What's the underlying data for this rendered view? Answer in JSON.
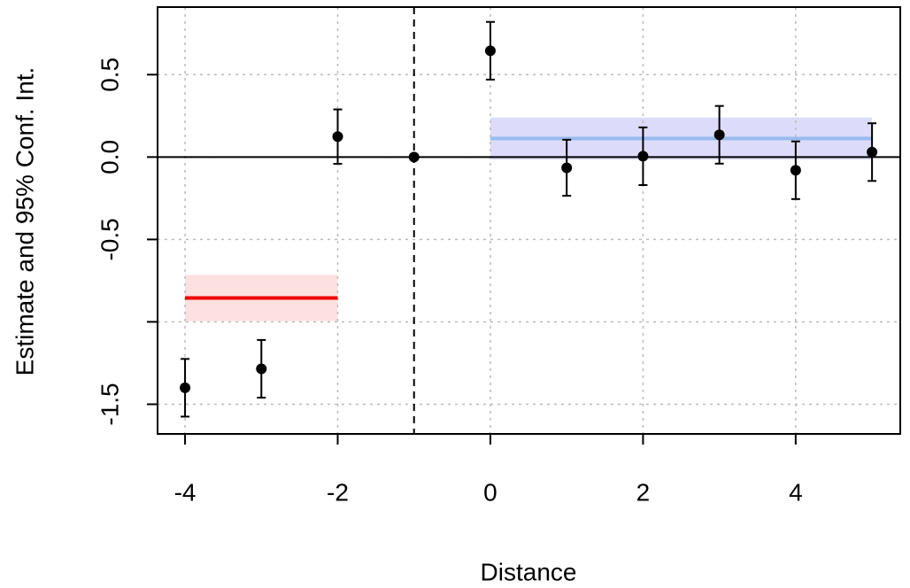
{
  "chart_data": {
    "type": "errorbar",
    "xlabel": "Distance",
    "ylabel": "Estimate and 95% Conf. Int.",
    "x": [
      -4,
      -3,
      -2,
      -1,
      0,
      1,
      2,
      3,
      4,
      5
    ],
    "values": [
      -1.4,
      -1.285,
      0.124,
      0,
      0.645,
      -0.065,
      0.005,
      0.135,
      -0.08,
      0.03
    ],
    "errors": [
      0.175,
      0.175,
      0.165,
      null,
      0.175,
      0.17,
      0.175,
      0.175,
      0.175,
      0.175
    ],
    "color": "#000000",
    "averages": [
      {
        "x": [
          -4,
          -2
        ],
        "value": -0.855,
        "lower": -0.995,
        "upper": -0.715,
        "color": "#ee0000",
        "fill": "#fde0e0"
      },
      {
        "x": [
          0,
          5
        ],
        "value": 0.113,
        "lower": -0.016,
        "upper": 0.24,
        "color": "#99bbee",
        "fill": "#dcdcfa"
      }
    ],
    "vline": -1,
    "hline": 0,
    "xlim": [
      -4.36,
      5.37
    ],
    "ylim": [
      -1.68,
      0.91
    ],
    "xticks": [
      -4,
      -2,
      0,
      2,
      4
    ],
    "yticks": [
      0.5,
      {
        "value": 0,
        "label": "0.0"
      },
      -0.5,
      {
        "value": -1,
        "label": null
      },
      -1.5
    ],
    "grid": true
  }
}
